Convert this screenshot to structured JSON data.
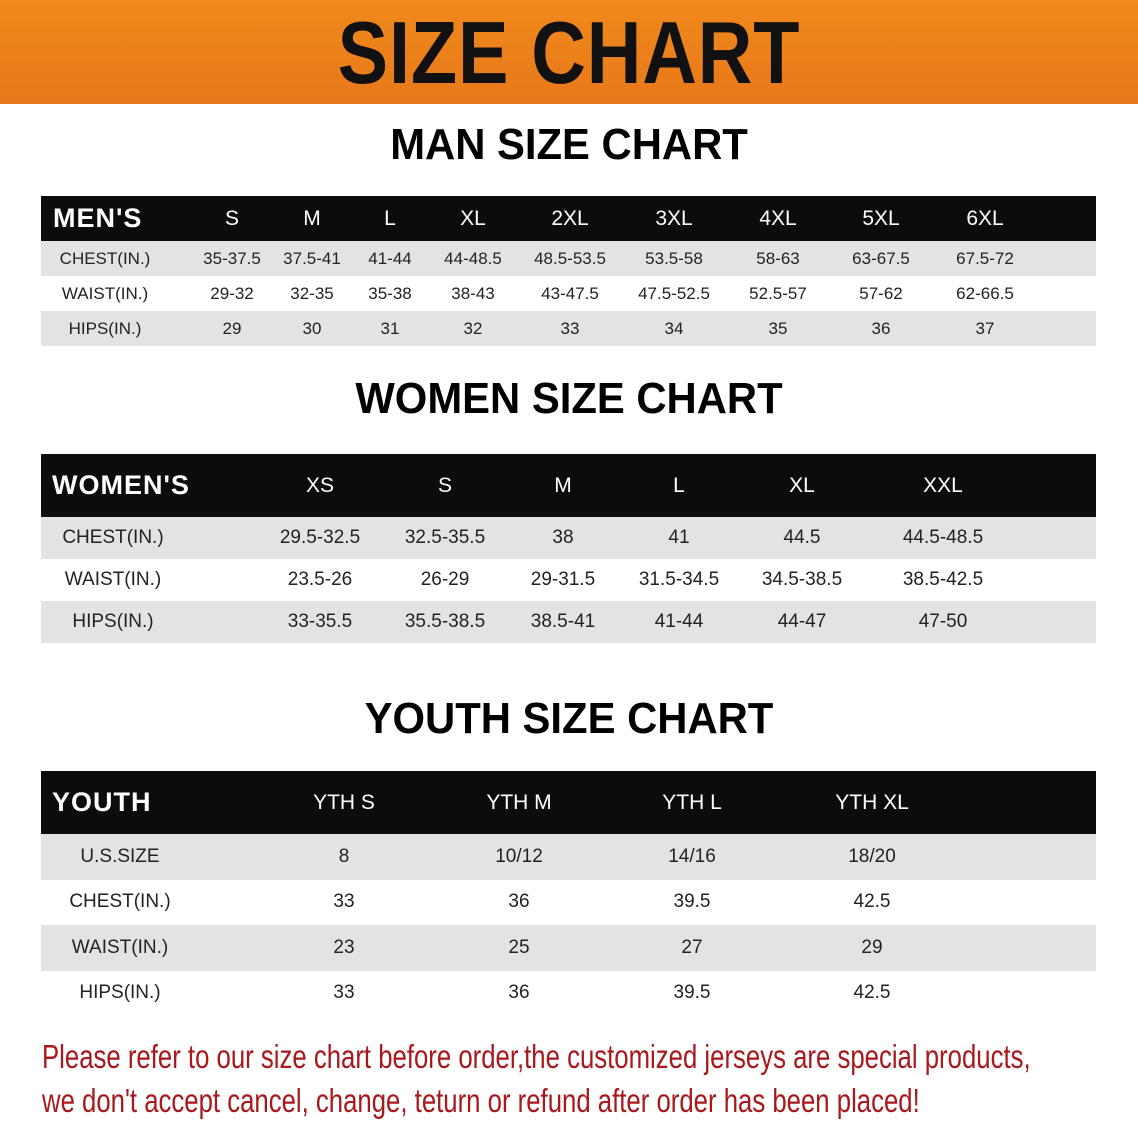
{
  "banner_title": "SIZE CHART",
  "men": {
    "title": "MAN SIZE CHART",
    "header": [
      "MEN'S",
      "S",
      "M",
      "L",
      "XL",
      "2XL",
      "3XL",
      "4XL",
      "5XL",
      "6XL"
    ],
    "rows": [
      [
        "CHEST(IN.)",
        "35-37.5",
        "37.5-41",
        "41-44",
        "44-48.5",
        "48.5-53.5",
        "53.5-58",
        "58-63",
        "63-67.5",
        "67.5-72"
      ],
      [
        "WAIST(IN.)",
        "29-32",
        "32-35",
        "35-38",
        "38-43",
        "43-47.5",
        "47.5-52.5",
        "52.5-57",
        "57-62",
        "62-66.5"
      ],
      [
        "HIPS(IN.)",
        "29",
        "30",
        "31",
        "32",
        "33",
        "34",
        "35",
        "36",
        "37"
      ]
    ]
  },
  "women": {
    "title": "WOMEN SIZE CHART",
    "header": [
      "WOMEN'S",
      "XS",
      "S",
      "M",
      "L",
      "XL",
      "XXL"
    ],
    "rows": [
      [
        "CHEST(IN.)",
        "29.5-32.5",
        "32.5-35.5",
        "38",
        "41",
        "44.5",
        "44.5-48.5"
      ],
      [
        "WAIST(IN.)",
        "23.5-26",
        "26-29",
        "29-31.5",
        "31.5-34.5",
        "34.5-38.5",
        "38.5-42.5"
      ],
      [
        "HIPS(IN.)",
        "33-35.5",
        "35.5-38.5",
        "38.5-41",
        "41-44",
        "44-47",
        "47-50"
      ]
    ]
  },
  "youth": {
    "title": "YOUTH SIZE CHART",
    "header": [
      "YOUTH",
      "YTH S",
      "YTH M",
      "YTH L",
      "YTH XL"
    ],
    "rows": [
      [
        "U.S.SIZE",
        "8",
        "10/12",
        "14/16",
        "18/20"
      ],
      [
        "CHEST(IN.)",
        "33",
        "36",
        "39.5",
        "42.5"
      ],
      [
        "WAIST(IN.)",
        "23",
        "25",
        "27",
        "29"
      ],
      [
        "HIPS(IN.)",
        "33",
        "36",
        "39.5",
        "42.5"
      ]
    ]
  },
  "notice": [
    "Please refer to our size chart before order,the customized jerseys are special products,",
    "we don't accept cancel, change, teturn or refund after order has been placed!"
  ],
  "colors": {
    "banner": "#ec801b",
    "header_bg": "#0c0c0c",
    "stripe": "#e3e3e3",
    "notice": "#a8181c"
  }
}
